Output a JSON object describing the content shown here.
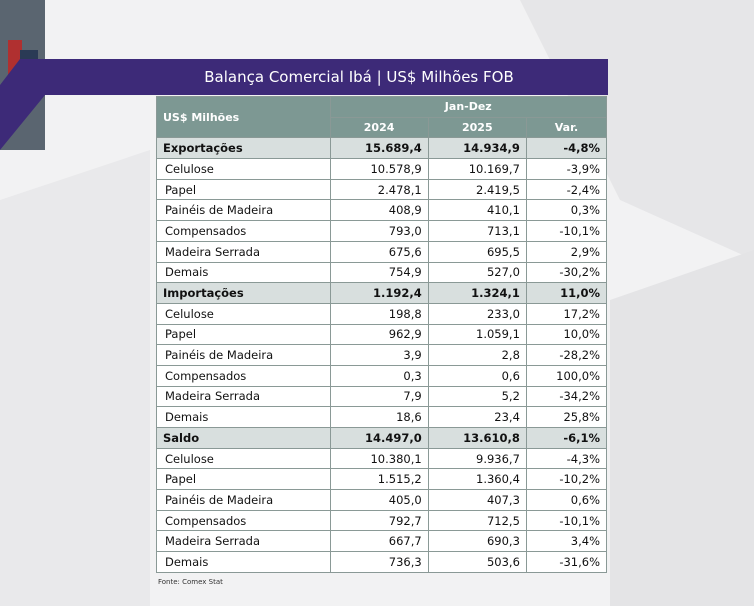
{
  "title": "Balança Comercial Ibá | US$ Milhões FOB",
  "table": {
    "header": {
      "label": "US$ Milhões",
      "period": "Jan-Dez",
      "columns": [
        "2024",
        "2025",
        "Var."
      ]
    },
    "sections": [
      {
        "name": "Exportações",
        "values": [
          "15.689,4",
          "14.934,9",
          "-4,8%"
        ],
        "rows": [
          {
            "label": "Celulose",
            "values": [
              "10.578,9",
              "10.169,7",
              "-3,9%"
            ]
          },
          {
            "label": "Papel",
            "values": [
              "2.478,1",
              "2.419,5",
              "-2,4%"
            ]
          },
          {
            "label": "Painéis de Madeira",
            "values": [
              "408,9",
              "410,1",
              "0,3%"
            ]
          },
          {
            "label": "Compensados",
            "values": [
              "793,0",
              "713,1",
              "-10,1%"
            ]
          },
          {
            "label": "Madeira Serrada",
            "values": [
              "675,6",
              "695,5",
              "2,9%"
            ]
          },
          {
            "label": "Demais",
            "values": [
              "754,9",
              "527,0",
              "-30,2%"
            ]
          }
        ]
      },
      {
        "name": "Importações",
        "values": [
          "1.192,4",
          "1.324,1",
          "11,0%"
        ],
        "rows": [
          {
            "label": "Celulose",
            "values": [
              "198,8",
              "233,0",
              "17,2%"
            ]
          },
          {
            "label": "Papel",
            "values": [
              "962,9",
              "1.059,1",
              "10,0%"
            ]
          },
          {
            "label": "Painéis de Madeira",
            "values": [
              "3,9",
              "2,8",
              "-28,2%"
            ]
          },
          {
            "label": "Compensados",
            "values": [
              "0,3",
              "0,6",
              "100,0%"
            ]
          },
          {
            "label": "Madeira Serrada",
            "values": [
              "7,9",
              "5,2",
              "-34,2%"
            ]
          },
          {
            "label": "Demais",
            "values": [
              "18,6",
              "23,4",
              "25,8%"
            ]
          }
        ]
      },
      {
        "name": "Saldo",
        "values": [
          "14.497,0",
          "13.610,8",
          "-6,1%"
        ],
        "rows": [
          {
            "label": "Celulose",
            "values": [
              "10.380,1",
              "9.936,7",
              "-4,3%"
            ]
          },
          {
            "label": "Papel",
            "values": [
              "1.515,2",
              "1.360,4",
              "-10,2%"
            ]
          },
          {
            "label": "Painéis de Madeira",
            "values": [
              "405,0",
              "407,3",
              "0,6%"
            ]
          },
          {
            "label": "Compensados",
            "values": [
              "792,7",
              "712,5",
              "-10,1%"
            ]
          },
          {
            "label": "Madeira Serrada",
            "values": [
              "667,7",
              "690,3",
              "3,4%"
            ]
          },
          {
            "label": "Demais",
            "values": [
              "736,3",
              "503,6",
              "-31,6%"
            ]
          }
        ]
      }
    ]
  },
  "source": "Fonte: Comex Stat"
}
